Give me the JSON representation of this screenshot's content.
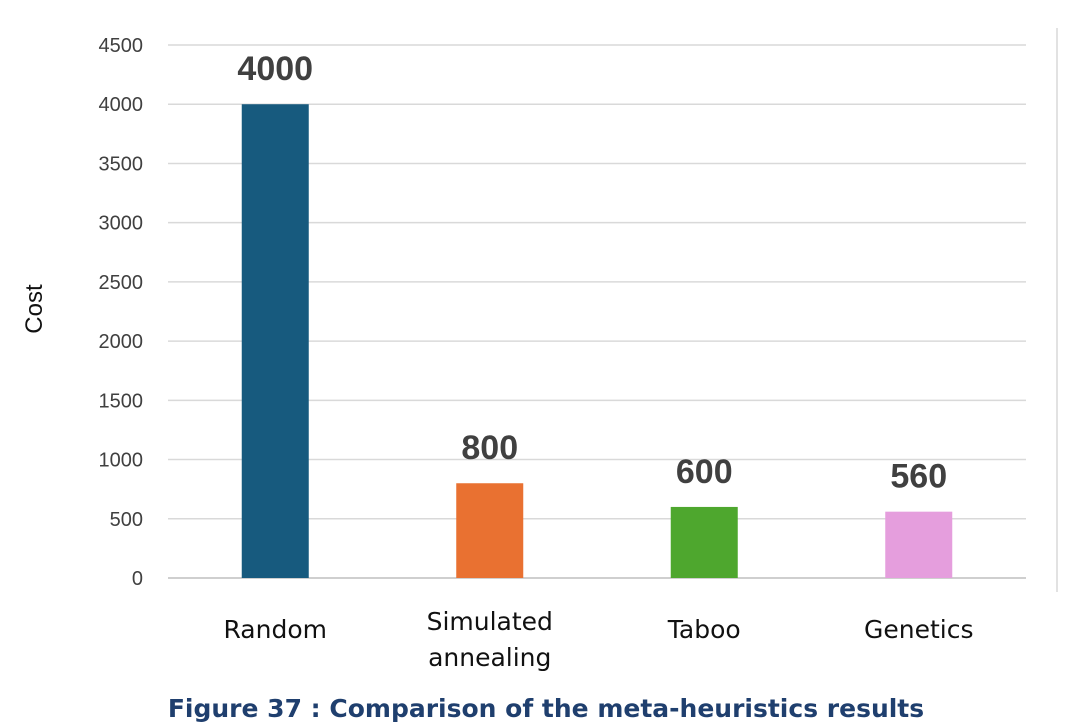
{
  "chart_data": {
    "type": "bar",
    "categories": [
      [
        "Random"
      ],
      [
        "Simulated",
        "annealing"
      ],
      [
        "Taboo"
      ],
      [
        "Genetics"
      ]
    ],
    "values": [
      4000,
      800,
      600,
      560
    ],
    "data_labels": [
      "4000",
      "800",
      "600",
      "560"
    ],
    "ylabel": "Cost",
    "ylim": [
      0,
      4500
    ],
    "yticks": [
      0,
      500,
      1000,
      1500,
      2000,
      2500,
      3000,
      3500,
      4000,
      4500
    ],
    "grid": true,
    "colors": [
      "#175a7e",
      "#e97131",
      "#4ea72e",
      "#e59edd"
    ]
  },
  "caption": "Figure 37 : Comparison of the meta-heuristics results"
}
